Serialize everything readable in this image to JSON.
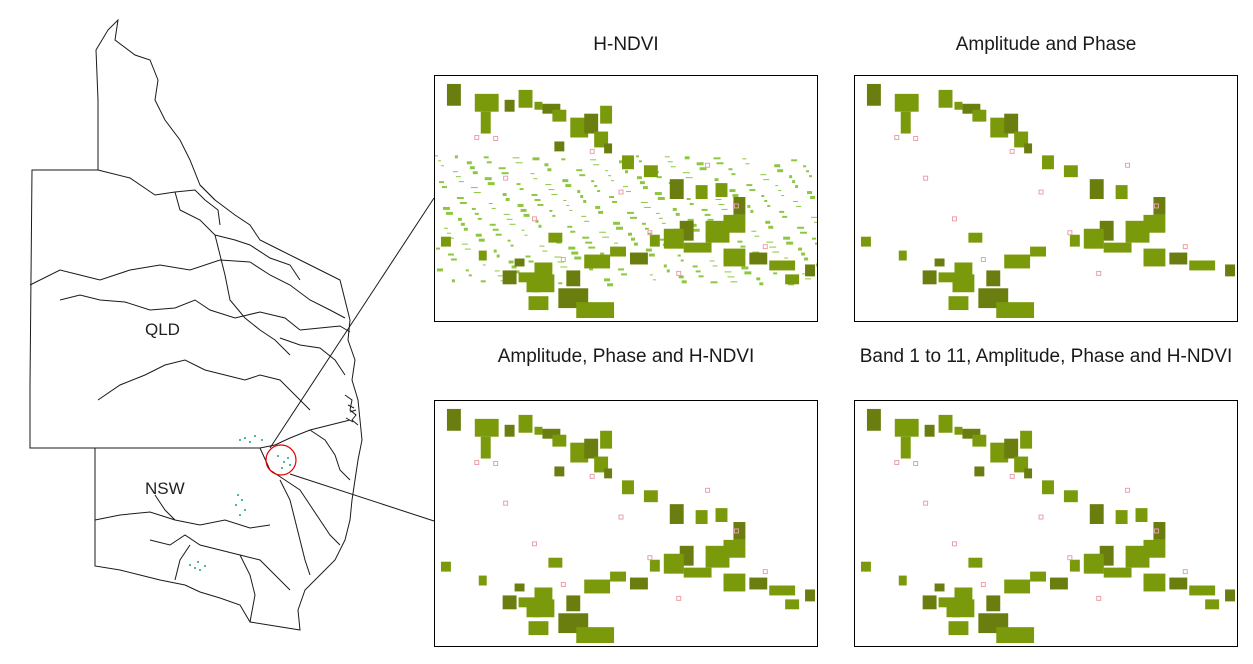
{
  "map": {
    "labels": {
      "qld": "QLD",
      "nsw": "NSW"
    }
  },
  "panels": [
    {
      "title": "H-NDVI"
    },
    {
      "title": "Amplitude and Phase"
    },
    {
      "title": "Amplitude, Phase and H-NDVI"
    },
    {
      "title": "Band 1 to 11, Amplitude, Phase and H-NDVI"
    }
  ],
  "colors": {
    "field": "#7a9a0c",
    "field_dark": "#6a7e10",
    "vegetation_noise": "#8dc63f",
    "misclassified": "#e8a0a8",
    "highlight_circle": "#e00000",
    "sample_points": "#1aa080"
  }
}
